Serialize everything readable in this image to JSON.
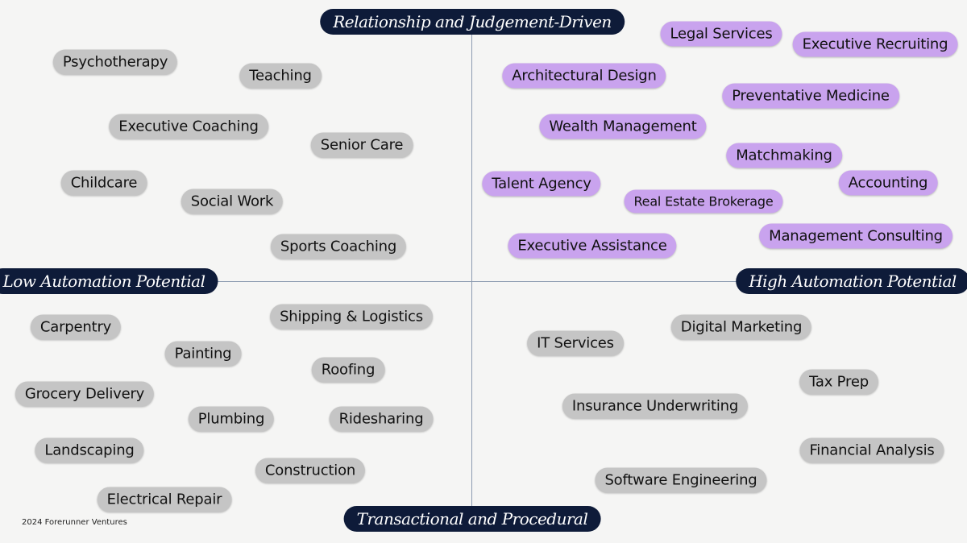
{
  "axes": {
    "top": "Relationship and Judgement-Driven",
    "bottom": "Transactional and Procedural",
    "left": "Low Automation Potential",
    "right": "High Automation Potential"
  },
  "quadrants": [
    {
      "items": [
        "Psychotherapy",
        "Teaching",
        "Executive Coaching",
        "Senior Care",
        "Childcare",
        "Social Work",
        "Sports Coaching"
      ]
    },
    {
      "items": [
        "Legal Services",
        "Executive Recruiting",
        "Architectural Design",
        "Preventative Medicine",
        "Wealth Management",
        "Matchmaking",
        "Talent Agency",
        "Accounting",
        "Real Estate Brokerage",
        "Executive Assistance",
        "Management Consulting"
      ]
    },
    {
      "items": [
        "Carpentry",
        "Shipping & Logistics",
        "Painting",
        "Roofing",
        "Grocery Delivery",
        "Plumbing",
        "Ridesharing",
        "Landscaping",
        "Construction",
        "Electrical Repair"
      ]
    },
    {
      "items": [
        "IT Services",
        "Digital Marketing",
        "Tax Prep",
        "Insurance Underwriting",
        "Financial Analysis",
        "Software Engineering"
      ]
    }
  ],
  "footer": "2024 Forerunner Ventures"
}
